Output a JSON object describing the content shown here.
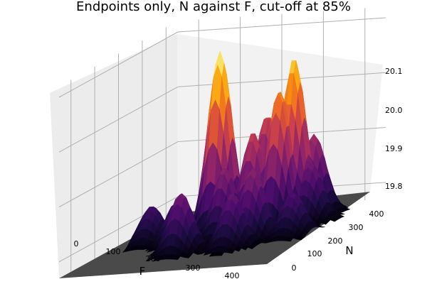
{
  "chart_data": {
    "type": "surface",
    "title": "Endpoints only, N against F, cut-off at 85%",
    "xlabel": "F",
    "ylabel": "N",
    "zlabel": "",
    "xlim": [
      -50,
      450
    ],
    "ylim": [
      -50,
      450
    ],
    "zlim": [
      19.77,
      20.1
    ],
    "xticks": [
      "0",
      "100",
      "200",
      "300",
      "400"
    ],
    "yticks": [
      "0",
      "100",
      "200",
      "300",
      "400"
    ],
    "zticks": [
      "19.8",
      "19.9",
      "20.0",
      "20.1"
    ],
    "colormap": [
      "#000004",
      "#1b0c41",
      "#4a0c6b",
      "#781c6d",
      "#a52c60",
      "#cf4446",
      "#ed6925",
      "#fb9b06",
      "#f7d13d",
      "#fcffa4"
    ],
    "floor_color": "#4a4a4a",
    "grid": true,
    "peaks": [
      {
        "F": 160,
        "N": 260,
        "z": 20.1
      },
      {
        "F": 315,
        "N": 300,
        "z": 20.07
      },
      {
        "F": 300,
        "N": 265,
        "z": 20.02
      },
      {
        "F": 225,
        "N": 345,
        "z": 19.96
      },
      {
        "F": 245,
        "N": 250,
        "z": 19.95
      },
      {
        "F": 340,
        "N": 340,
        "z": 19.92
      },
      {
        "F": 290,
        "N": 170,
        "z": 19.9
      },
      {
        "F": 205,
        "N": 200,
        "z": 19.9
      },
      {
        "F": 35,
        "N": 190,
        "z": 19.84
      },
      {
        "F": 160,
        "N": 95,
        "z": 19.88
      },
      {
        "F": 275,
        "N": 110,
        "z": 19.87
      },
      {
        "F": 110,
        "N": 165,
        "z": 19.85
      },
      {
        "F": 380,
        "N": 180,
        "z": 19.85
      },
      {
        "F": 360,
        "N": 290,
        "z": 19.88
      },
      {
        "F": 200,
        "N": 300,
        "z": 19.87
      }
    ]
  }
}
